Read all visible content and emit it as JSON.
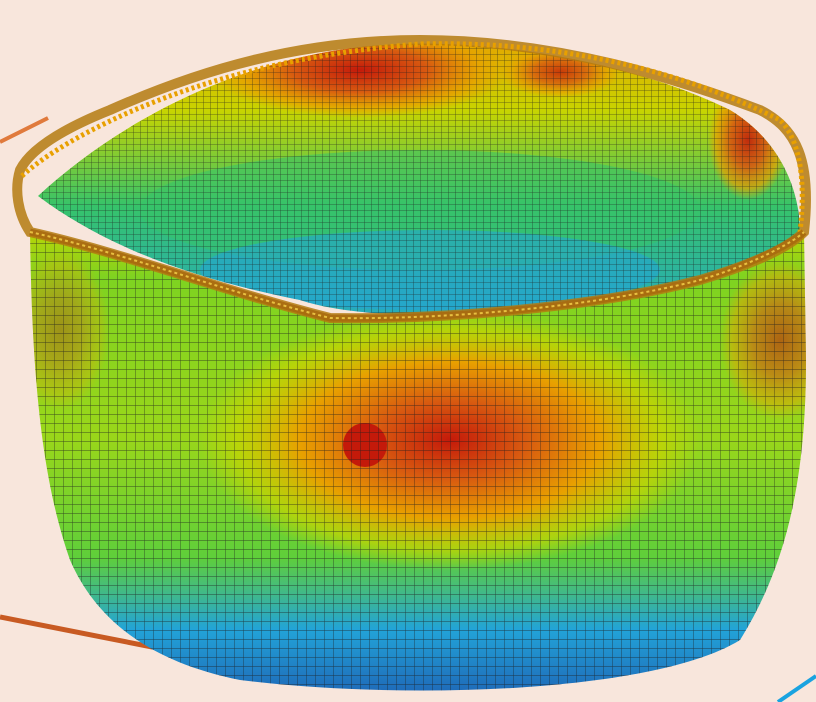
{
  "scene": {
    "background_color": "#f8e6dc",
    "subject": "fea-deformed-cup-mesh",
    "contour_colors": [
      "#1e62b4",
      "#22a3d8",
      "#36c36a",
      "#7ed321",
      "#c8d400",
      "#e8a000",
      "#d85a10",
      "#c41a0a"
    ],
    "mesh_line_color": "#1d1d1d",
    "accent_lines": [
      {
        "name": "orange-line-top",
        "color": "#e07a3c"
      },
      {
        "name": "orange-line-bottom",
        "color": "#c85a22"
      },
      {
        "name": "blue-line-corner",
        "color": "#1aa3e0"
      }
    ]
  }
}
